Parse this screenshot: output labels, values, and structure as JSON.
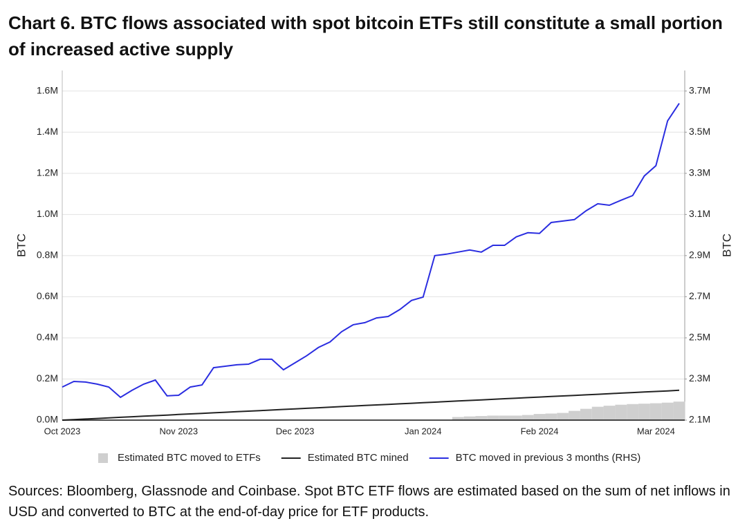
{
  "chart_data": {
    "type": "line",
    "title": "Chart 6. BTC flows associated with spot bitcoin ETFs still constitute a small portion of increased active supply",
    "source": "Sources: Bloomberg, Glassnode and Coinbase. Spot BTC ETF flows are estimated based on the sum of net inflows in USD and converted to BTC at the end-of-day price for ETF products.",
    "ylabel": "BTC",
    "y2label": "BTC",
    "categories": [
      "Oct 2023",
      null,
      null,
      null,
      null,
      null,
      null,
      null,
      null,
      null,
      "Nov 2023",
      null,
      null,
      null,
      null,
      null,
      null,
      null,
      null,
      null,
      "Dec 2023",
      null,
      null,
      null,
      null,
      null,
      null,
      null,
      null,
      null,
      null,
      "Jan 2024",
      null,
      null,
      null,
      null,
      null,
      null,
      null,
      null,
      null,
      "Feb 2024",
      null,
      null,
      null,
      null,
      null,
      null,
      null,
      null,
      null,
      "Mar 2024",
      null,
      null
    ],
    "series": [
      {
        "name": "Estimated BTC moved to ETFs",
        "type": "bar",
        "color": "#cfcfcf",
        "values": [
          null,
          null,
          null,
          null,
          null,
          null,
          null,
          null,
          null,
          null,
          null,
          null,
          null,
          null,
          null,
          null,
          null,
          null,
          null,
          null,
          null,
          null,
          null,
          null,
          null,
          null,
          null,
          null,
          null,
          null,
          null,
          null,
          null,
          null,
          15000,
          18000,
          20000,
          22000,
          22000,
          22000,
          25000,
          30000,
          32000,
          35000,
          45000,
          55000,
          65000,
          70000,
          75000,
          78000,
          80000,
          82000,
          85000,
          90000
        ]
      },
      {
        "name": "Estimated BTC mined",
        "type": "line",
        "color": "#222222",
        "values": [
          0,
          2700,
          5500,
          8200,
          10900,
          13700,
          16400,
          19200,
          21900,
          24600,
          27400,
          30100,
          32800,
          35600,
          38300,
          41000,
          43800,
          46500,
          49200,
          52000,
          54700,
          57500,
          60200,
          62900,
          65700,
          68400,
          71100,
          73900,
          76600,
          79300,
          82100,
          84800,
          87500,
          90300,
          93000,
          95800,
          98500,
          101200,
          104000,
          106700,
          109400,
          112200,
          114900,
          117600,
          120400,
          123100,
          125800,
          128600,
          131300,
          134000,
          136800,
          139500,
          142200,
          145000
        ]
      },
      {
        "name": "BTC moved in previous 3 months (RHS)",
        "type": "line",
        "axis": "y2",
        "color": "#2a2de0",
        "values": [
          2261000,
          2288000,
          2285000,
          2275000,
          2261000,
          2211000,
          2245000,
          2275000,
          2295000,
          2218000,
          2221000,
          2261000,
          2271000,
          2355000,
          2362000,
          2369000,
          2372000,
          2396000,
          2396000,
          2345000,
          2379000,
          2413000,
          2453000,
          2480000,
          2530000,
          2564000,
          2574000,
          2597000,
          2604000,
          2638000,
          2682000,
          2698000,
          2900000,
          2907000,
          2917000,
          2927000,
          2917000,
          2950000,
          2950000,
          2991000,
          3011000,
          3008000,
          3061000,
          3068000,
          3075000,
          3118000,
          3152000,
          3145000,
          3169000,
          3192000,
          3287000,
          3337000,
          3555000,
          3640000
        ]
      }
    ],
    "ylim": [
      0,
      1700000
    ],
    "yticks": [
      {
        "value": 0,
        "label": "0.0M"
      },
      {
        "value": 200000,
        "label": "0.2M"
      },
      {
        "value": 400000,
        "label": "0.4M"
      },
      {
        "value": 600000,
        "label": "0.6M"
      },
      {
        "value": 800000,
        "label": "0.8M"
      },
      {
        "value": 1000000,
        "label": "1.0M"
      },
      {
        "value": 1200000,
        "label": "1.2M"
      },
      {
        "value": 1400000,
        "label": "1.4M"
      },
      {
        "value": 1600000,
        "label": "1.6M"
      }
    ],
    "y2lim": [
      2100000,
      3800000
    ],
    "y2ticks": [
      {
        "value": 2100000,
        "label": "2.1M"
      },
      {
        "value": 2300000,
        "label": "2.3M"
      },
      {
        "value": 2500000,
        "label": "2.5M"
      },
      {
        "value": 2700000,
        "label": "2.7M"
      },
      {
        "value": 2900000,
        "label": "2.9M"
      },
      {
        "value": 3100000,
        "label": "3.1M"
      },
      {
        "value": 3300000,
        "label": "3.3M"
      },
      {
        "value": 3500000,
        "label": "3.5M"
      },
      {
        "value": 3700000,
        "label": "3.7M"
      }
    ],
    "grid": true,
    "legend": "bottom"
  }
}
